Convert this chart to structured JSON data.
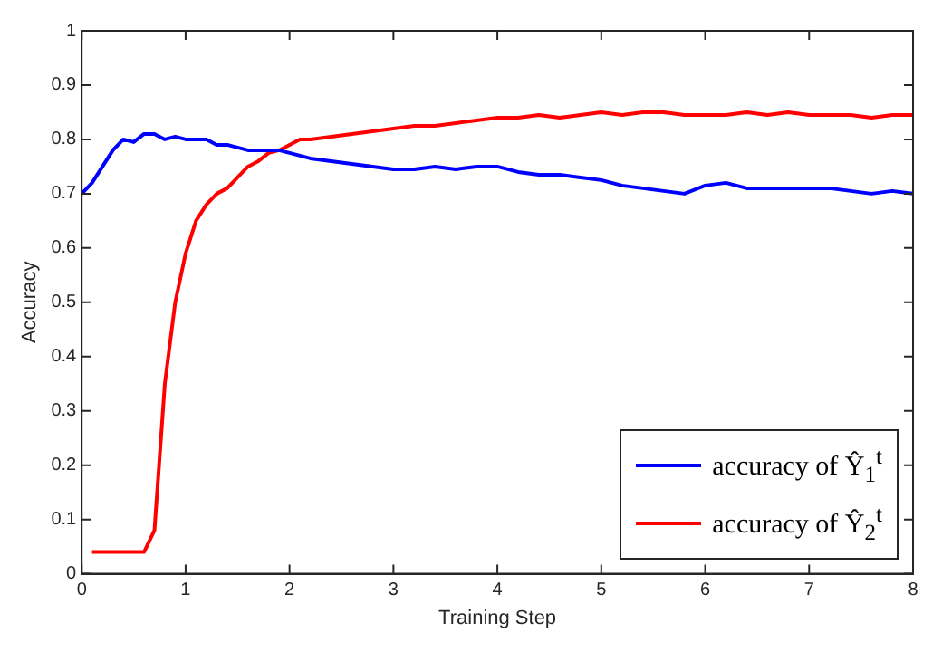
{
  "chart_data": {
    "type": "line",
    "xlabel": "Training Step",
    "ylabel": "Accuracy",
    "xlim": [
      0,
      8
    ],
    "xticks": [
      0,
      1,
      2,
      3,
      4,
      5,
      6,
      7,
      8
    ],
    "ylim": [
      0,
      1
    ],
    "yticks": [
      0,
      0.1,
      0.2,
      0.3,
      0.4,
      0.5,
      0.6,
      0.7,
      0.8,
      0.9,
      1
    ],
    "grid": false,
    "legend": "bottom right",
    "marker": "none",
    "line_style": "solid",
    "series": [
      {
        "name": "accuracy of Ŷ$_{1}$$^{t}$",
        "color": "#0000ff",
        "x": [
          0,
          0.1,
          0.2,
          0.3,
          0.4,
          0.5,
          0.6,
          0.7,
          0.8,
          0.9,
          1.0,
          1.1,
          1.2,
          1.3,
          1.4,
          1.5,
          1.6,
          1.7,
          1.8,
          1.9,
          2.0,
          2.2,
          2.4,
          2.6,
          2.8,
          3.0,
          3.2,
          3.4,
          3.6,
          3.8,
          4.0,
          4.2,
          4.4,
          4.6,
          4.8,
          5.0,
          5.2,
          5.4,
          5.6,
          5.8,
          6.0,
          6.2,
          6.4,
          6.6,
          6.8,
          7.0,
          7.2,
          7.4,
          7.6,
          7.8,
          8.0
        ],
        "values": [
          0.7,
          0.72,
          0.75,
          0.78,
          0.8,
          0.795,
          0.81,
          0.81,
          0.8,
          0.805,
          0.8,
          0.8,
          0.8,
          0.79,
          0.79,
          0.785,
          0.78,
          0.78,
          0.78,
          0.78,
          0.775,
          0.765,
          0.76,
          0.755,
          0.75,
          0.745,
          0.745,
          0.75,
          0.745,
          0.75,
          0.75,
          0.74,
          0.735,
          0.735,
          0.73,
          0.725,
          0.715,
          0.71,
          0.705,
          0.7,
          0.715,
          0.72,
          0.71,
          0.71,
          0.71,
          0.71,
          0.71,
          0.705,
          0.7,
          0.705,
          0.7
        ]
      },
      {
        "name": "accuracy of Ŷ$_{2}$$^{t}$",
        "color": "#ff0000",
        "x": [
          0.1,
          0.6,
          0.7,
          0.8,
          0.9,
          1.0,
          1.1,
          1.2,
          1.3,
          1.4,
          1.5,
          1.6,
          1.7,
          1.8,
          1.9,
          2.0,
          2.1,
          2.2,
          2.4,
          2.6,
          2.8,
          3.0,
          3.2,
          3.4,
          3.6,
          3.8,
          4.0,
          4.2,
          4.4,
          4.6,
          4.8,
          5.0,
          5.2,
          5.4,
          5.6,
          5.8,
          6.0,
          6.2,
          6.4,
          6.6,
          6.8,
          7.0,
          7.2,
          7.4,
          7.6,
          7.8,
          8.0
        ],
        "values": [
          0.04,
          0.04,
          0.08,
          0.35,
          0.5,
          0.59,
          0.65,
          0.68,
          0.7,
          0.71,
          0.73,
          0.75,
          0.76,
          0.775,
          0.78,
          0.79,
          0.8,
          0.8,
          0.805,
          0.81,
          0.815,
          0.82,
          0.825,
          0.825,
          0.83,
          0.835,
          0.84,
          0.84,
          0.845,
          0.84,
          0.845,
          0.85,
          0.845,
          0.85,
          0.85,
          0.845,
          0.845,
          0.845,
          0.85,
          0.845,
          0.85,
          0.845,
          0.845,
          0.845,
          0.84,
          0.845,
          0.845
        ]
      }
    ]
  }
}
